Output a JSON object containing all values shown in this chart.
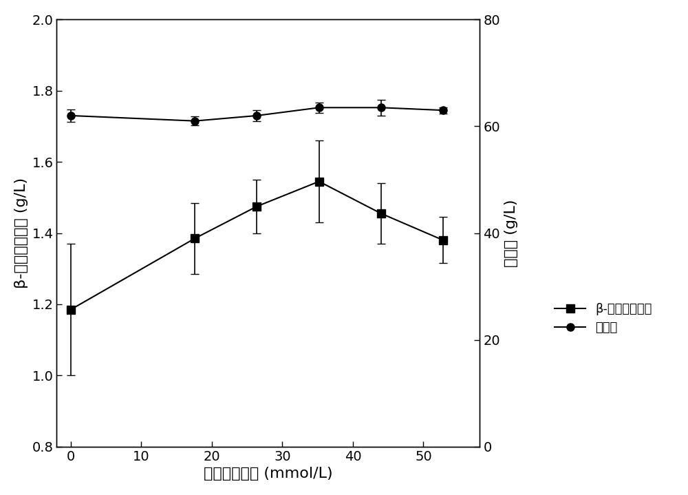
{
  "x": [
    0,
    17.6,
    26.4,
    35.2,
    44.0,
    52.8
  ],
  "beta_carotene": [
    1.185,
    1.385,
    1.475,
    1.545,
    1.455,
    1.38
  ],
  "beta_carotene_err": [
    0.185,
    0.1,
    0.075,
    0.115,
    0.085,
    0.065
  ],
  "biomass": [
    62.0,
    61.0,
    62.0,
    63.5,
    63.5,
    63.0
  ],
  "biomass_err": [
    1.2,
    0.8,
    1.0,
    1.0,
    1.5,
    0.6
  ],
  "xlabel": "乙酸摩尔浓度 (mmol/L)",
  "ylabel_left": "β-胡萝卜素浓度 (g/L)",
  "ylabel_right": "生物量 (g/L)",
  "ylim_left": [
    0.8,
    2.0
  ],
  "ylim_right": [
    0,
    80
  ],
  "xlim": [
    -2,
    58
  ],
  "xticks": [
    0,
    10,
    20,
    30,
    40,
    50
  ],
  "yticks_left": [
    0.8,
    1.0,
    1.2,
    1.4,
    1.6,
    1.8,
    2.0
  ],
  "yticks_right": [
    0,
    20,
    40,
    60,
    80
  ],
  "legend_beta_label": "β-胡萝卜素浓度",
  "legend_biomass_label": "生物量",
  "line_color": "#000000",
  "markersize": 8,
  "linewidth": 1.5,
  "capsize": 4,
  "elinewidth": 1.2,
  "tick_labelsize": 14,
  "axis_labelsize": 16
}
